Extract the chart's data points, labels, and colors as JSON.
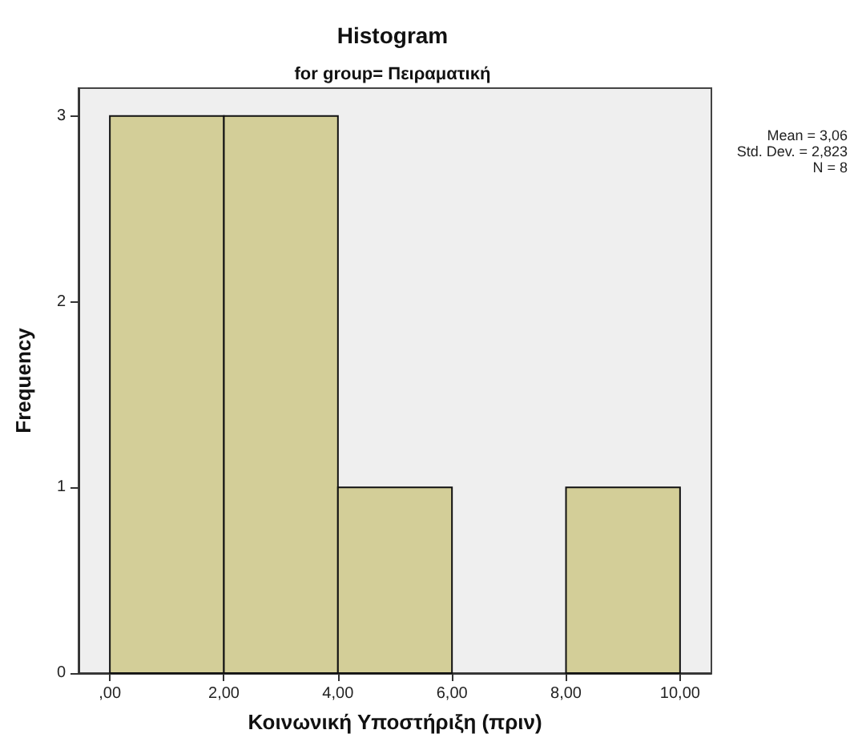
{
  "chart_data": {
    "type": "histogram",
    "title": "Histogram",
    "subtitle": "for group= Πειραματική",
    "xlabel": "Κοινωνική Υποστήριξη (πριν)",
    "ylabel": "Frequency",
    "bins": [
      0,
      2,
      4,
      6,
      8,
      10
    ],
    "values": [
      3,
      3,
      1,
      0,
      1
    ],
    "color": "#d3ce98",
    "xlim": [
      -0.55,
      10.55
    ],
    "xticks": [
      {
        "value": 0,
        "label": ",00"
      },
      {
        "value": 2,
        "label": "2,00"
      },
      {
        "value": 4,
        "label": "4,00"
      },
      {
        "value": 6,
        "label": "6,00"
      },
      {
        "value": 8,
        "label": "8,00"
      },
      {
        "value": 10,
        "label": "10,00"
      }
    ],
    "ylim": [
      0,
      3.15
    ],
    "yticks": [
      0,
      1,
      2,
      3
    ],
    "grid": false,
    "annotations": [
      "Mean = 3,06",
      "Std. Dev. = 2,823",
      "N = 8"
    ]
  }
}
